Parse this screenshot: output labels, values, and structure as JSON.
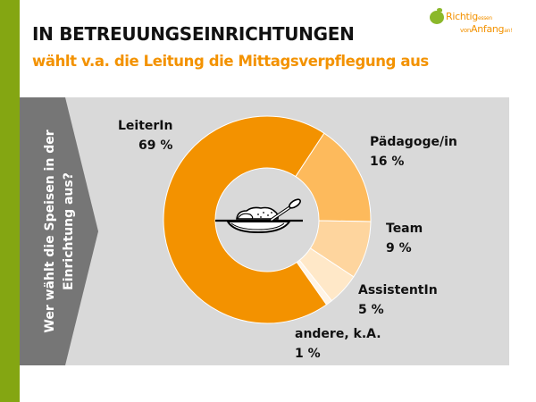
{
  "header": {
    "title": "IN BETREUUNGSEINRICHTUNGEN",
    "subtitle": "wählt v.a. die Leitung die Mittagsverpflegung aus"
  },
  "logo": {
    "line1_main": "Richtig",
    "line1_small": "essen",
    "line2_small_lead": "von",
    "line2_main": "Anfang",
    "line2_small_tail": "an!"
  },
  "question": "Wer wählt die Speisen in der Einrichtung aus?",
  "colors": {
    "brand_green": "#84A612",
    "accent_orange": "#F39200",
    "panel_gray": "#D9D9D9",
    "arrow_gray": "#767676"
  },
  "chart_data": {
    "type": "pie",
    "variant": "donut",
    "title": "Wer wählt die Speisen in der Einrichtung aus?",
    "unit": "%",
    "categories": [
      "LeiterIn",
      "Pädagoge/in",
      "Team",
      "AssistentIn",
      "andere, k.A."
    ],
    "values": [
      69,
      16,
      9,
      5,
      1
    ],
    "labels": [
      "69 %",
      "16 %",
      "9 %",
      "5 %",
      "1 %"
    ],
    "colors": [
      "#F39200",
      "#FDBA5C",
      "#FED59E",
      "#FFE8C8",
      "#FFF4E6"
    ],
    "center_icon": "plate-with-food-icon",
    "legend": "none"
  }
}
